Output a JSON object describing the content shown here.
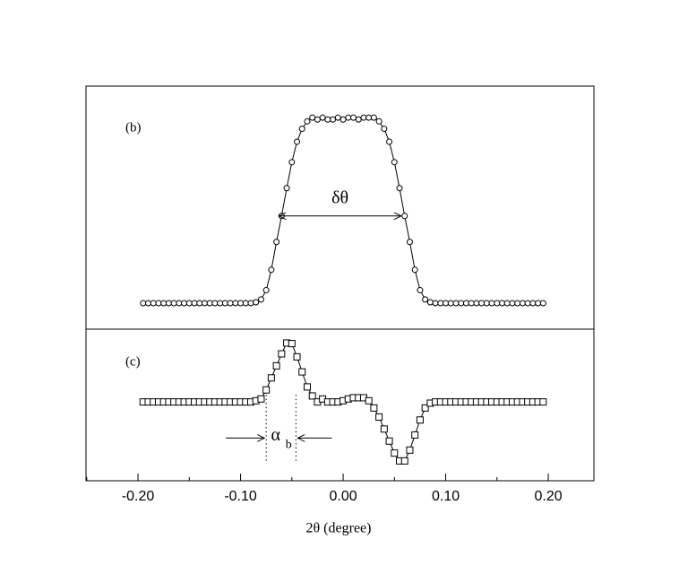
{
  "chart_data": [
    {
      "type": "line",
      "marker": "circle",
      "label": "(b)",
      "color": "#000000",
      "x": [
        -0.195,
        -0.19,
        -0.185,
        -0.18,
        -0.175,
        -0.17,
        -0.165,
        -0.16,
        -0.155,
        -0.15,
        -0.145,
        -0.14,
        -0.135,
        -0.13,
        -0.125,
        -0.12,
        -0.115,
        -0.11,
        -0.105,
        -0.1,
        -0.095,
        -0.09,
        -0.085,
        -0.08,
        -0.075,
        -0.07,
        -0.065,
        -0.06,
        -0.055,
        -0.05,
        -0.045,
        -0.04,
        -0.035,
        -0.03,
        -0.025,
        -0.02,
        -0.015,
        -0.01,
        -0.005,
        0,
        0.005,
        0.01,
        0.015,
        0.02,
        0.025,
        0.03,
        0.035,
        0.04,
        0.045,
        0.05,
        0.055,
        0.06,
        0.065,
        0.07,
        0.075,
        0.08,
        0.085,
        0.09,
        0.095,
        0.1,
        0.105,
        0.11,
        0.115,
        0.12,
        0.125,
        0.13,
        0.135,
        0.14,
        0.145,
        0.15,
        0.155,
        0.16,
        0.165,
        0.17,
        0.175,
        0.18,
        0.185,
        0.19,
        0.195
      ],
      "values": [
        0,
        0,
        0,
        0,
        0,
        0,
        0,
        0,
        0,
        0,
        0,
        0,
        0,
        0,
        0,
        0,
        0,
        0,
        0,
        0,
        0,
        0,
        0.005,
        0.02,
        0.07,
        0.18,
        0.33,
        0.47,
        0.62,
        0.76,
        0.87,
        0.94,
        0.98,
        1.0,
        0.99,
        1.0,
        0.99,
        0.99,
        1.0,
        0.99,
        1.0,
        1.0,
        0.99,
        1.0,
        1.0,
        1.0,
        0.98,
        0.94,
        0.87,
        0.76,
        0.62,
        0.47,
        0.33,
        0.18,
        0.07,
        0.02,
        0.005,
        0,
        0,
        0,
        0,
        0,
        0,
        0,
        0,
        0,
        0,
        0,
        0,
        0,
        0,
        0,
        0,
        0,
        0,
        0,
        0,
        0,
        0
      ],
      "ylim": [
        -0.14,
        1.17
      ],
      "width_annotation": {
        "text": "δθ",
        "from": -0.0625,
        "to": 0.0565,
        "y": 0.47
      }
    },
    {
      "type": "line",
      "marker": "square",
      "label": "(c)",
      "color": "#000000",
      "x": [
        -0.195,
        -0.19,
        -0.185,
        -0.18,
        -0.175,
        -0.17,
        -0.165,
        -0.16,
        -0.155,
        -0.15,
        -0.145,
        -0.14,
        -0.135,
        -0.13,
        -0.125,
        -0.12,
        -0.115,
        -0.11,
        -0.105,
        -0.1,
        -0.095,
        -0.09,
        -0.085,
        -0.08,
        -0.075,
        -0.07,
        -0.065,
        -0.06,
        -0.055,
        -0.05,
        -0.045,
        -0.04,
        -0.035,
        -0.03,
        -0.025,
        -0.02,
        -0.015,
        -0.01,
        -0.005,
        0,
        0.005,
        0.01,
        0.015,
        0.02,
        0.025,
        0.03,
        0.035,
        0.04,
        0.045,
        0.05,
        0.055,
        0.06,
        0.065,
        0.07,
        0.075,
        0.08,
        0.085,
        0.09,
        0.095,
        0.1,
        0.105,
        0.11,
        0.115,
        0.12,
        0.125,
        0.13,
        0.135,
        0.14,
        0.145,
        0.15,
        0.155,
        0.16,
        0.165,
        0.17,
        0.175,
        0.18,
        0.185,
        0.19,
        0.195
      ],
      "values": [
        0,
        0,
        0,
        0,
        0,
        0,
        0,
        0,
        0,
        0,
        0,
        0,
        0,
        0,
        0,
        0,
        0,
        0,
        0,
        0,
        0,
        0,
        0.02,
        0.05,
        0.2,
        0.4,
        0.6,
        0.8,
        0.98,
        0.97,
        0.75,
        0.5,
        0.25,
        0.1,
        0.0,
        0.05,
        0.0,
        0,
        0,
        0.02,
        0.05,
        0.07,
        0.07,
        0.07,
        0.02,
        -0.1,
        -0.25,
        -0.45,
        -0.65,
        -0.85,
        -0.98,
        -0.98,
        -0.8,
        -0.55,
        -0.3,
        -0.1,
        -0.02,
        0,
        0,
        0,
        0,
        0,
        0,
        0,
        0,
        0,
        0,
        0,
        0,
        0,
        0,
        0,
        0,
        0,
        0,
        0,
        0,
        0,
        0
      ],
      "ylim": [
        -1.31,
        1.21
      ],
      "width_annotation": {
        "text": "α",
        "subscript": "b",
        "from": -0.075,
        "to": -0.046,
        "y": -0.6
      },
      "xlabel": "2θ (degree)",
      "xlim": [
        -0.2507,
        0.2445
      ],
      "xticks": [
        {
          "value": -0.2,
          "label": "-0.20"
        },
        {
          "value": -0.1,
          "label": "-0.10"
        },
        {
          "value": 0,
          "label": "0.00"
        },
        {
          "value": 0.1,
          "label": "0.10"
        },
        {
          "value": 0.2,
          "label": "0.20"
        }
      ],
      "xminor_ticks": [
        -0.25,
        -0.15,
        -0.05,
        0.05,
        0.15
      ]
    }
  ]
}
